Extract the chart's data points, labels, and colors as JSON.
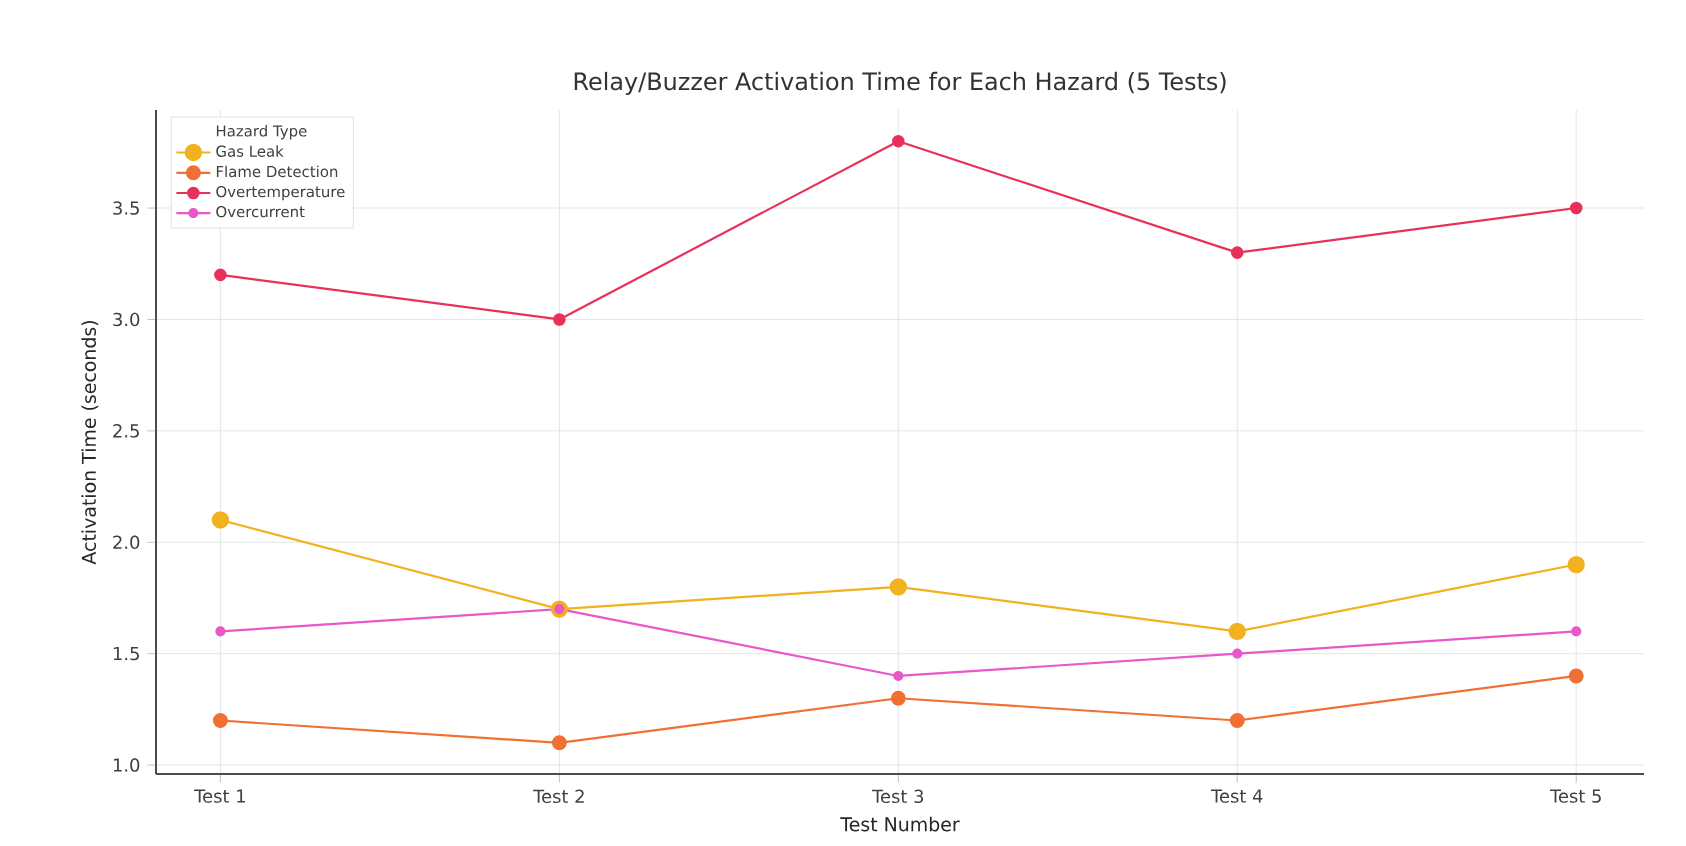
{
  "chart_data": {
    "type": "line",
    "title": "Relay/Buzzer Activation Time for Each Hazard (5 Tests)",
    "xlabel": "Test Number",
    "ylabel": "Activation Time (seconds)",
    "legend_title": "Hazard Type",
    "categories": [
      "Test 1",
      "Test 2",
      "Test 3",
      "Test 4",
      "Test 5"
    ],
    "series": [
      {
        "name": "Gas Leak",
        "color": "#f2b21e",
        "values": [
          2.1,
          1.7,
          1.8,
          1.6,
          1.9
        ]
      },
      {
        "name": "Flame Detection",
        "color": "#f07034",
        "values": [
          1.2,
          1.1,
          1.3,
          1.2,
          1.4
        ]
      },
      {
        "name": "Overtemperature",
        "color": "#e8305a",
        "values": [
          3.2,
          3.0,
          3.8,
          3.3,
          3.5
        ]
      },
      {
        "name": "Overcurrent",
        "color": "#e858c8",
        "values": [
          1.6,
          1.7,
          1.4,
          1.5,
          1.6
        ]
      }
    ],
    "ylim": [
      0.96,
      3.94
    ],
    "yticks": [
      {
        "value": 1,
        "label": "1.0"
      },
      1.5,
      {
        "value": 2,
        "label": "2.0"
      },
      2.5,
      {
        "value": 3,
        "label": "3.0"
      },
      3.5
    ],
    "grid": true,
    "legend": "top left",
    "marker": "circle",
    "line_style": "solid"
  }
}
